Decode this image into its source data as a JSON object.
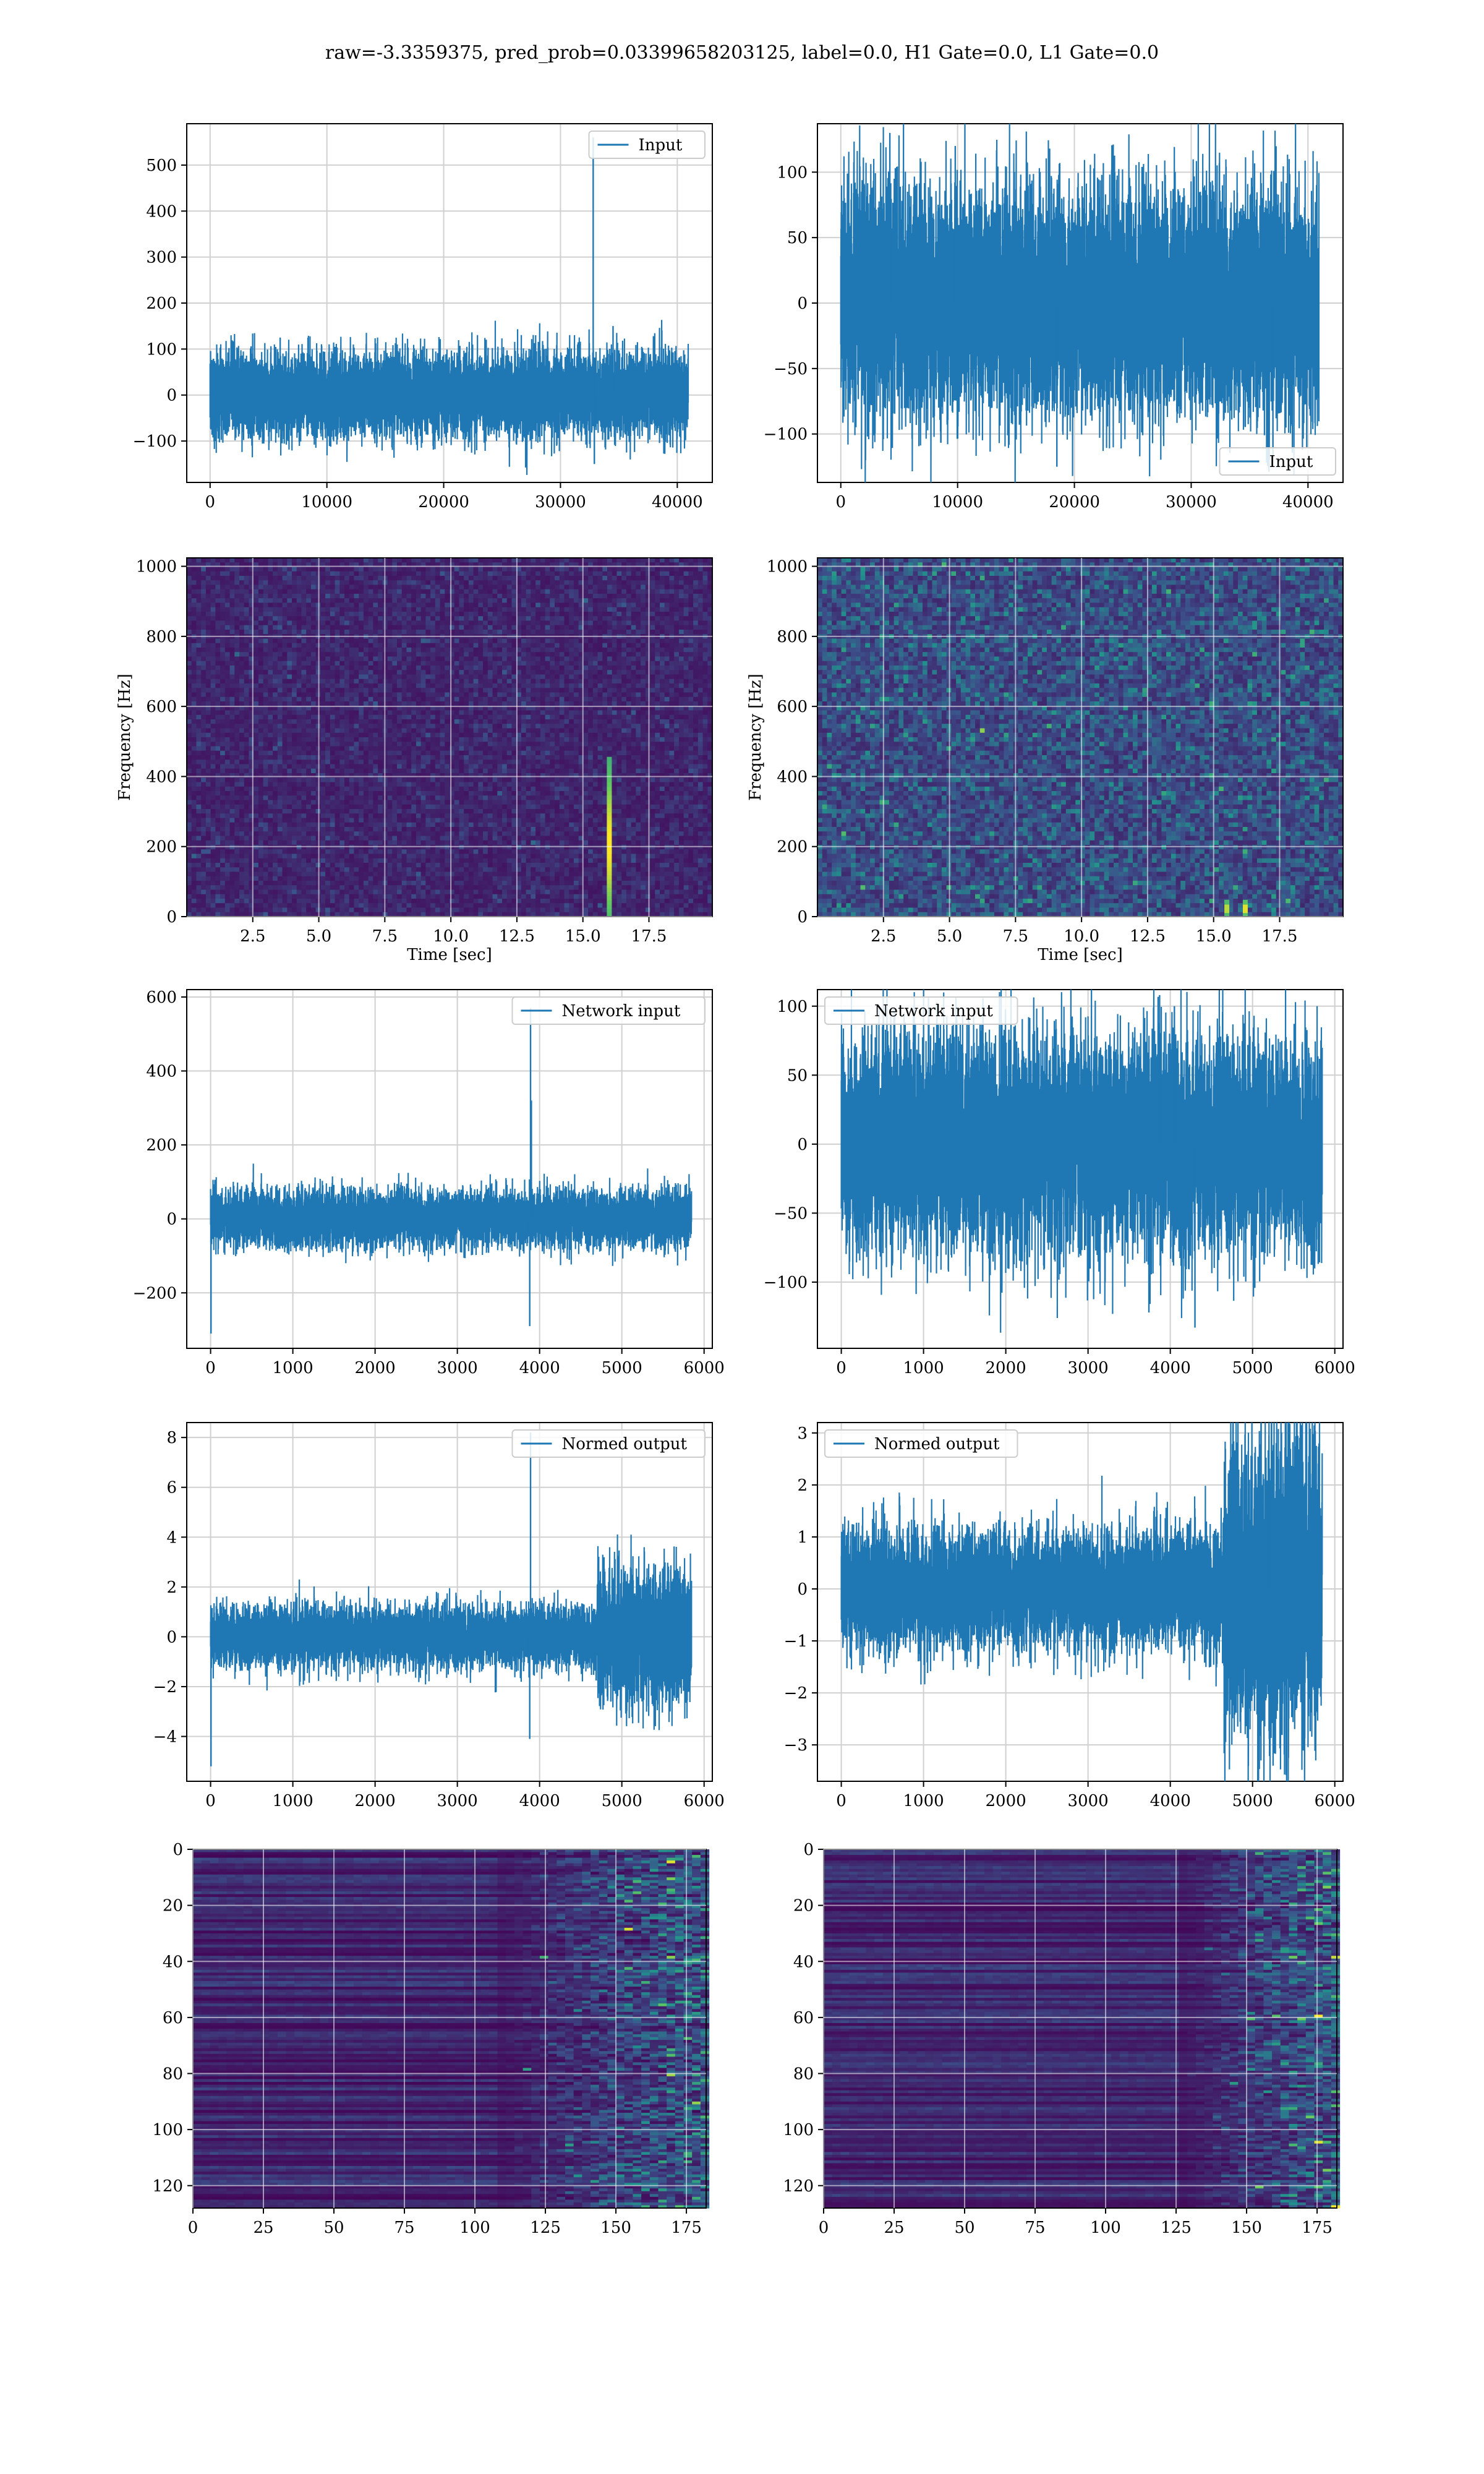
{
  "figure": {
    "suptitle": "raw=-3.3359375, pred_prob=0.03399658203125, label=0.0, H1 Gate=0.0, L1 Gate=0.0"
  },
  "colors": {
    "line": "#1f77b4",
    "grid": "#d0d0d0",
    "axes": "#000000",
    "viridis_low": "#440154",
    "viridis_mid": "#21918c",
    "viridis_high": "#fde725"
  },
  "chart_data": [
    {
      "id": "input-h1",
      "type": "line",
      "title": "",
      "xlabel": "",
      "ylabel": "",
      "legend": {
        "label": "Input",
        "loc": "upper right"
      },
      "xlim": [
        -2000,
        43000
      ],
      "ylim": [
        -190,
        590
      ],
      "xticks": [
        0,
        10000,
        20000,
        30000,
        40000
      ],
      "yticks": [
        -100,
        0,
        100,
        200,
        300,
        400,
        500
      ],
      "signal": {
        "n": 40960,
        "amplitude": 90,
        "spikes": [
          {
            "x": 32800,
            "y": 560
          },
          {
            "x": 32900,
            "y": -150
          },
          {
            "x": 6000,
            "y": 125
          },
          {
            "x": 34500,
            "y": 150
          }
        ]
      },
      "grid": true
    },
    {
      "id": "input-l1",
      "type": "line",
      "title": "",
      "xlabel": "",
      "ylabel": "",
      "legend": {
        "label": "Input",
        "loc": "lower right"
      },
      "xlim": [
        -2000,
        43000
      ],
      "ylim": [
        -137,
        137
      ],
      "xticks": [
        0,
        10000,
        20000,
        30000,
        40000
      ],
      "yticks": [
        -100,
        -50,
        0,
        50,
        100
      ],
      "signal": {
        "n": 40960,
        "amplitude": 85,
        "spikes": [
          {
            "x": 4200,
            "y": 130
          },
          {
            "x": 18500,
            "y": -125
          },
          {
            "x": 9800,
            "y": 120
          },
          {
            "x": 37000,
            "y": -118
          }
        ]
      },
      "grid": true
    },
    {
      "id": "spectrogram-h1",
      "type": "heatmap",
      "title": "",
      "xlabel": "Time [sec]",
      "ylabel": "Frequency [Hz]",
      "xlim": [
        0,
        19.9
      ],
      "ylim": [
        0,
        1024
      ],
      "xticks": [
        2.5,
        5.0,
        7.5,
        10.0,
        12.5,
        15.0,
        17.5
      ],
      "yticks": [
        0,
        200,
        400,
        600,
        800,
        1000
      ],
      "features": [
        {
          "t": 16.0,
          "f_max": 450,
          "intensity": 1.0
        }
      ],
      "grid": true
    },
    {
      "id": "spectrogram-l1",
      "type": "heatmap",
      "title": "",
      "xlabel": "Time [sec]",
      "ylabel": "Frequency [Hz]",
      "xlim": [
        0,
        19.9
      ],
      "ylim": [
        0,
        1024
      ],
      "xticks": [
        2.5,
        5.0,
        7.5,
        10.0,
        12.5,
        15.0,
        17.5
      ],
      "yticks": [
        0,
        200,
        400,
        600,
        800,
        1000
      ],
      "features": [
        {
          "t": 15.5,
          "f_max": 40,
          "intensity": 0.9
        },
        {
          "t": 16.2,
          "f_max": 40,
          "intensity": 1.0
        }
      ],
      "grid": true
    },
    {
      "id": "network-input-h1",
      "type": "line",
      "title": "",
      "xlabel": "",
      "ylabel": "",
      "legend": {
        "label": "Network input",
        "loc": "upper right"
      },
      "xlim": [
        -290,
        6100
      ],
      "ylim": [
        -350,
        620
      ],
      "xticks": [
        0,
        1000,
        2000,
        3000,
        4000,
        5000,
        6000
      ],
      "yticks": [
        -200,
        0,
        200,
        400,
        600
      ],
      "signal": {
        "n": 5850,
        "amplitude": 75,
        "spikes": [
          {
            "x": 5,
            "y": -310
          },
          {
            "x": 3890,
            "y": 570
          },
          {
            "x": 3880,
            "y": -290
          },
          {
            "x": 3900,
            "y": 320
          }
        ]
      },
      "grid": true
    },
    {
      "id": "network-input-l1",
      "type": "line",
      "title": "",
      "xlabel": "",
      "ylabel": "",
      "legend": {
        "label": "Network input",
        "loc": "upper left"
      },
      "xlim": [
        -290,
        6100
      ],
      "ylim": [
        -148,
        112
      ],
      "xticks": [
        0,
        1000,
        2000,
        3000,
        4000,
        5000,
        6000
      ],
      "yticks": [
        -100,
        -50,
        0,
        50,
        100
      ],
      "signal": {
        "n": 5850,
        "amplitude": 75,
        "spikes": [
          {
            "x": 3740,
            "y": -122
          },
          {
            "x": 4300,
            "y": -133
          },
          {
            "x": 3870,
            "y": 108
          },
          {
            "x": 4050,
            "y": 100
          }
        ]
      },
      "grid": true
    },
    {
      "id": "normed-output-h1",
      "type": "line",
      "title": "",
      "xlabel": "",
      "ylabel": "",
      "legend": {
        "label": "Normed output",
        "loc": "upper right"
      },
      "xlim": [
        -290,
        6100
      ],
      "ylim": [
        -5.8,
        8.6
      ],
      "xticks": [
        0,
        1000,
        2000,
        3000,
        4000,
        5000,
        6000
      ],
      "yticks": [
        -4,
        -2,
        0,
        2,
        4,
        6,
        8
      ],
      "signal": {
        "n": 5850,
        "amplitude": 1.2,
        "late_amplitude": 2.6,
        "late_start": 4700,
        "spikes": [
          {
            "x": 5,
            "y": -5.2
          },
          {
            "x": 3890,
            "y": 8.2
          },
          {
            "x": 3880,
            "y": -4.1
          }
        ]
      },
      "grid": true
    },
    {
      "id": "normed-output-l1",
      "type": "line",
      "title": "",
      "xlabel": "",
      "ylabel": "",
      "legend": {
        "label": "Normed output",
        "loc": "upper left"
      },
      "xlim": [
        -290,
        6100
      ],
      "ylim": [
        -3.7,
        3.2
      ],
      "xticks": [
        0,
        1000,
        2000,
        3000,
        4000,
        5000,
        6000
      ],
      "yticks": [
        -3,
        -2,
        -1,
        0,
        1,
        2,
        3
      ],
      "signal": {
        "n": 5850,
        "amplitude": 1.1,
        "late_amplitude": 2.9,
        "late_start": 4650,
        "spikes": [
          {
            "x": 5250,
            "y": -3.4
          },
          {
            "x": 5200,
            "y": 2.95
          }
        ]
      },
      "grid": true
    },
    {
      "id": "feature-map-h1",
      "type": "heatmap",
      "title": "",
      "xlabel": "",
      "ylabel": "",
      "xlim": [
        0,
        182
      ],
      "ylim": [
        128,
        0
      ],
      "xticks": [
        0,
        25,
        50,
        75,
        100,
        125,
        150,
        175
      ],
      "yticks": [
        0,
        20,
        40,
        60,
        80,
        100,
        120
      ],
      "rows": 128,
      "cols": 182,
      "activity_start": 105,
      "grid": true
    },
    {
      "id": "feature-map-l1",
      "type": "heatmap",
      "title": "",
      "xlabel": "",
      "ylabel": "",
      "xlim": [
        0,
        182
      ],
      "ylim": [
        128,
        0
      ],
      "xticks": [
        0,
        25,
        50,
        75,
        100,
        125,
        150,
        175
      ],
      "yticks": [
        0,
        20,
        40,
        60,
        80,
        100,
        120
      ],
      "rows": 128,
      "cols": 182,
      "activity_start": 125,
      "grid": true
    }
  ]
}
